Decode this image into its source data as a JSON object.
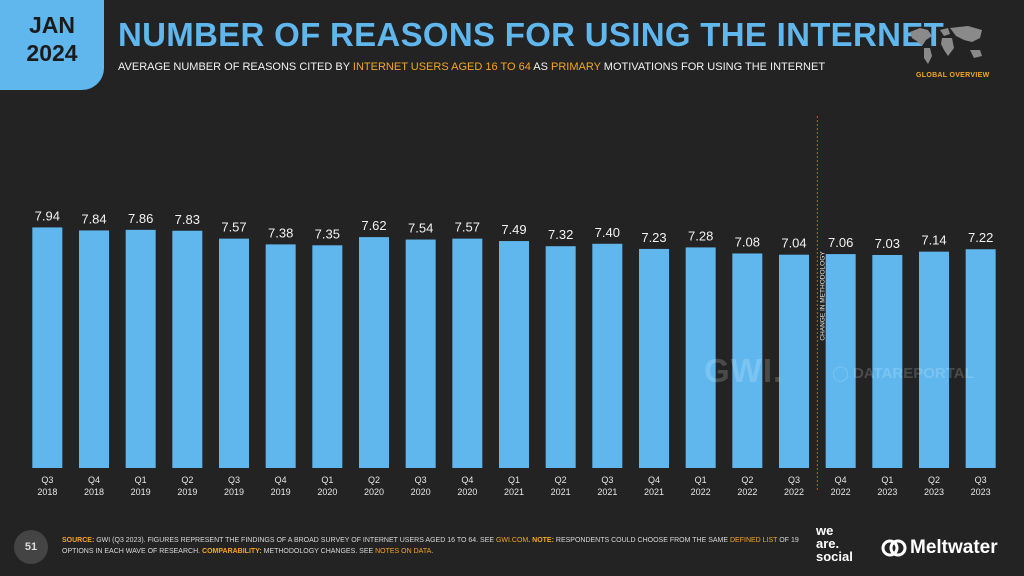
{
  "badge": {
    "month": "JAN",
    "year": "2024"
  },
  "title": "NUMBER OF REASONS FOR USING THE INTERNET",
  "subtitle": {
    "part1": "AVERAGE NUMBER OF REASONS CITED BY ",
    "highlight1": "INTERNET USERS AGED 16 TO 64",
    "part2": " AS ",
    "highlight2": "PRIMARY",
    "part3": " MOTIVATIONS FOR USING THE INTERNET"
  },
  "global_overview": "GLOBAL OVERVIEW",
  "watermarks": {
    "gwi": "GWI.",
    "datareportal": "DATAREPORTAL"
  },
  "page_number": "51",
  "footer": {
    "source_key": "SOURCE:",
    "source_text": " GWI (Q3 2023). FIGURES REPRESENT THE FINDINGS OF A BROAD SURVEY OF INTERNET USERS AGED 16 TO 64. SEE ",
    "source_link": "GWI.COM",
    "note_key": ". NOTE:",
    "note_text": " RESPONDENTS COULD CHOOSE FROM THE SAME ",
    "note_link": "DEFINED LIST",
    "note_text2": " OF 19 OPTIONS IN EACH WAVE OF RESEARCH. ",
    "comp_key": "COMPARABILITY:",
    "comp_text": " METHODOLOGY CHANGES. SEE ",
    "comp_link": "NOTES ON DATA",
    "comp_end": "."
  },
  "logos": {
    "we": "we",
    "are": "are.",
    "social": "social",
    "meltwater": "Meltwater"
  },
  "colors": {
    "bar": "#5fb7ee",
    "accent": "#f5a623",
    "background": "#232323"
  },
  "chart_data": {
    "type": "bar",
    "title": "NUMBER OF REASONS FOR USING THE INTERNET",
    "ylabel": "",
    "xlabel": "",
    "ylim": [
      0,
      8
    ],
    "grid": false,
    "categories": [
      [
        "Q3",
        "2018"
      ],
      [
        "Q4",
        "2018"
      ],
      [
        "Q1",
        "2019"
      ],
      [
        "Q2",
        "2019"
      ],
      [
        "Q3",
        "2019"
      ],
      [
        "Q4",
        "2019"
      ],
      [
        "Q1",
        "2020"
      ],
      [
        "Q2",
        "2020"
      ],
      [
        "Q3",
        "2020"
      ],
      [
        "Q4",
        "2020"
      ],
      [
        "Q1",
        "2021"
      ],
      [
        "Q2",
        "2021"
      ],
      [
        "Q3",
        "2021"
      ],
      [
        "Q4",
        "2021"
      ],
      [
        "Q1",
        "2022"
      ],
      [
        "Q2",
        "2022"
      ],
      [
        "Q3",
        "2022"
      ],
      [
        "Q4",
        "2022"
      ],
      [
        "Q1",
        "2023"
      ],
      [
        "Q2",
        "2023"
      ],
      [
        "Q3",
        "2023"
      ]
    ],
    "values": [
      7.94,
      7.84,
      7.86,
      7.83,
      7.57,
      7.38,
      7.35,
      7.62,
      7.54,
      7.57,
      7.49,
      7.32,
      7.4,
      7.23,
      7.28,
      7.08,
      7.04,
      7.06,
      7.03,
      7.14,
      7.22
    ],
    "value_labels": [
      "7.94",
      "7.84",
      "7.86",
      "7.83",
      "7.57",
      "7.38",
      "7.35",
      "7.62",
      "7.54",
      "7.57",
      "7.49",
      "7.32",
      "7.40",
      "7.23",
      "7.28",
      "7.08",
      "7.04",
      "7.06",
      "7.03",
      "7.14",
      "7.22"
    ],
    "annotation": {
      "text": "CHANGE IN METHODOLOGY",
      "after_index": 16
    }
  }
}
